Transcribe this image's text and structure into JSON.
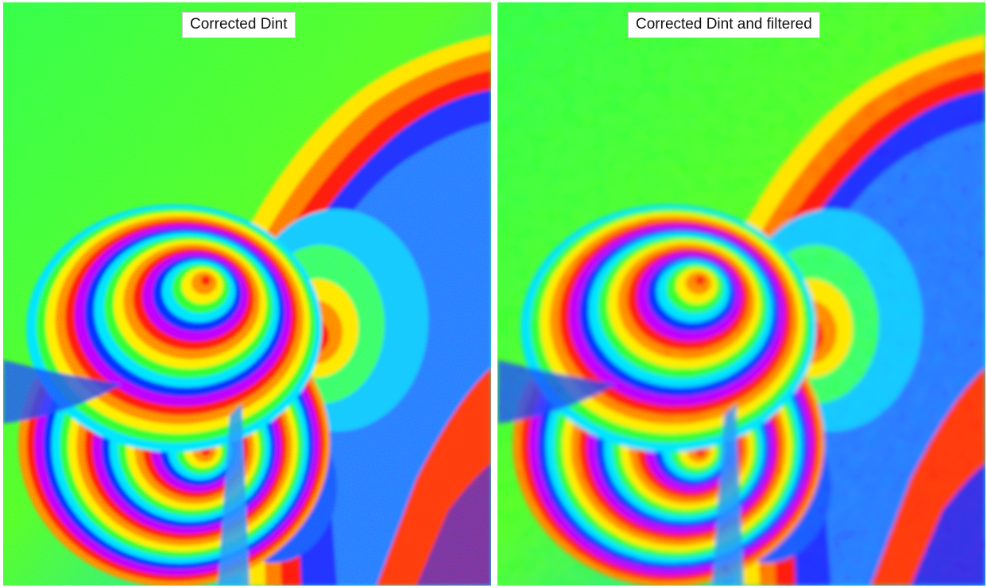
{
  "panels": [
    {
      "title": "Corrected Dint",
      "filtered": false
    },
    {
      "title": "Corrected Dint and filtered",
      "filtered": true
    }
  ],
  "colors": {
    "fringe_palette": [
      "#ff1a0a",
      "#ff8c00",
      "#ffee00",
      "#33ff33",
      "#00e5ff",
      "#0033ff",
      "#c000ff"
    ],
    "background_green": "#2bff52",
    "caption_background": "#ffffff"
  }
}
